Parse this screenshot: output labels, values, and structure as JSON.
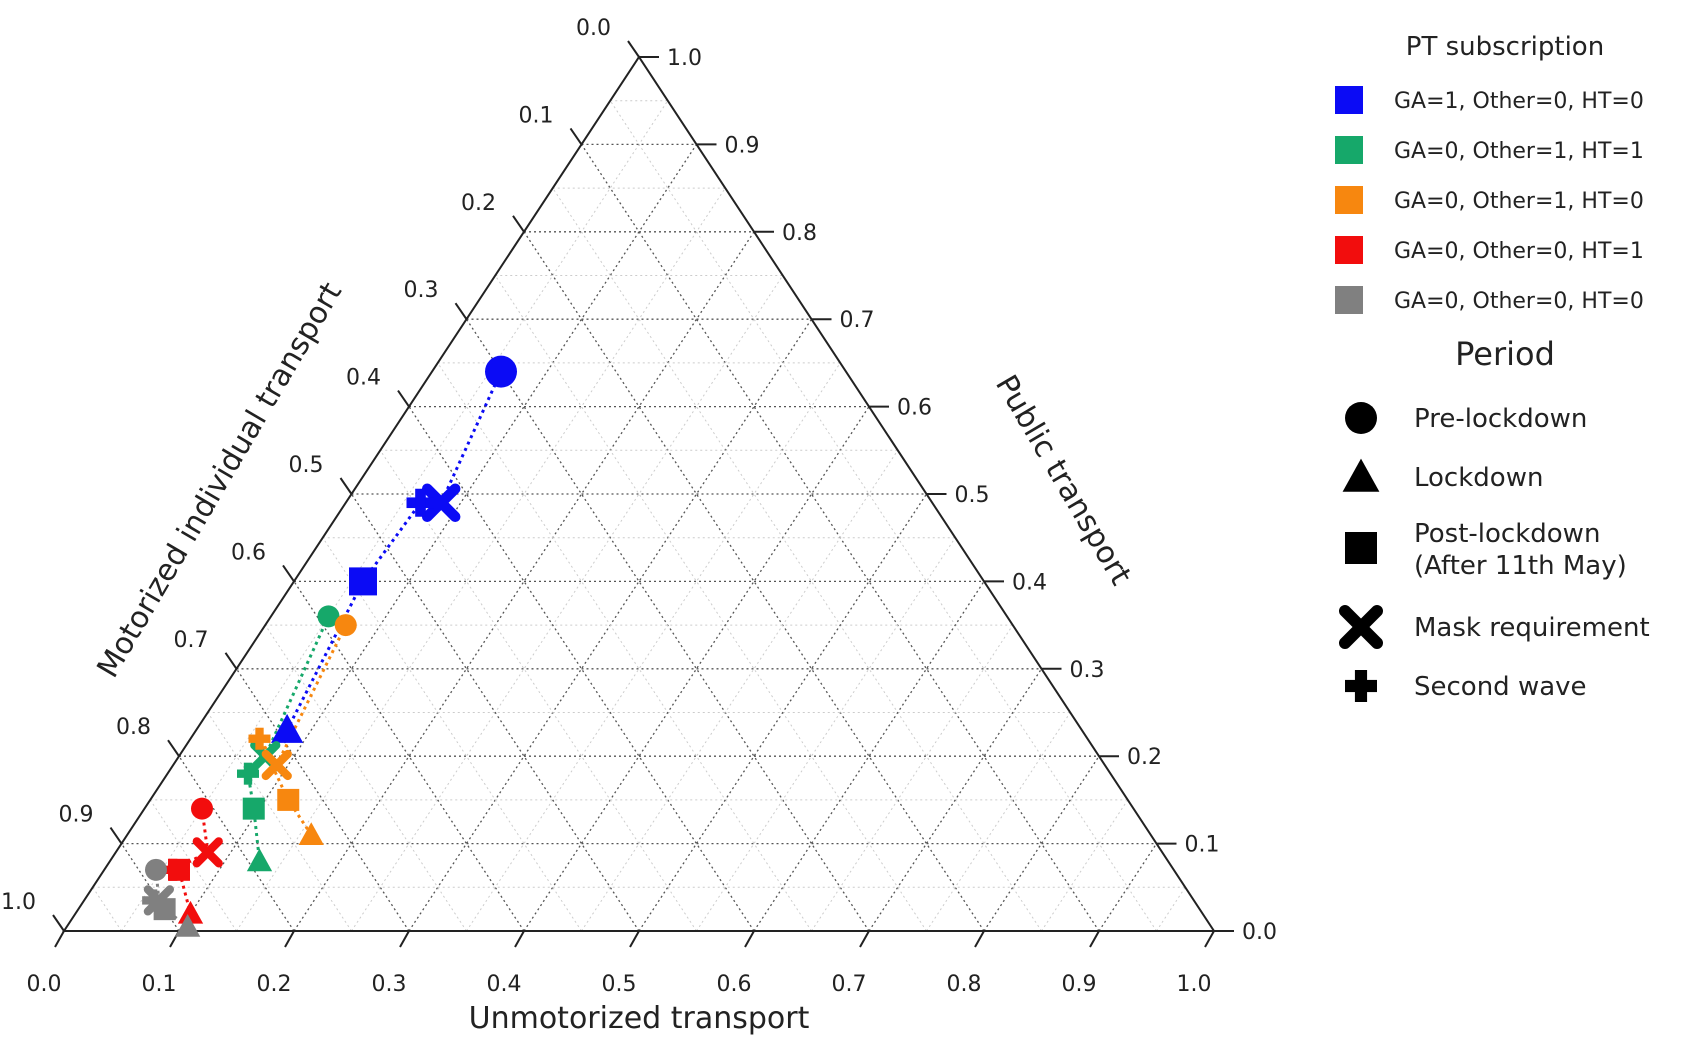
{
  "chart_data": {
    "type": "ternary-scatter",
    "axes": {
      "bottom": {
        "label": "Unmotorized transport",
        "ticks": [
          "0.0",
          "0.1",
          "0.2",
          "0.3",
          "0.4",
          "0.5",
          "0.6",
          "0.7",
          "0.8",
          "0.9",
          "1.0"
        ]
      },
      "right": {
        "label": "Public transport",
        "ticks": [
          "0.0",
          "0.1",
          "0.2",
          "0.3",
          "0.4",
          "0.5",
          "0.6",
          "0.7",
          "0.8",
          "0.9",
          "1.0"
        ]
      },
      "left": {
        "label": "Motorized individual transport",
        "ticks": [
          "0.0",
          "0.1",
          "0.2",
          "0.3",
          "0.4",
          "0.5",
          "0.6",
          "0.7",
          "0.8",
          "0.9",
          "1.0"
        ]
      }
    },
    "grid": true,
    "legend": {
      "placement": "right",
      "color_title": "PT subscription",
      "shape_title": "Period",
      "colors": [
        {
          "label": "GA=1, Other=0, HT=0",
          "color": "#0b0bf5"
        },
        {
          "label": "GA=0, Other=1, HT=1",
          "color": "#16a86a"
        },
        {
          "label": "GA=0, Other=1, HT=0",
          "color": "#f7870f"
        },
        {
          "label": "GA=0, Other=0, HT=1",
          "color": "#f20d0d"
        },
        {
          "label": "GA=0, Other=0, HT=0",
          "color": "#808080"
        }
      ],
      "shapes": [
        {
          "label": "Pre-lockdown",
          "shape": "circle"
        },
        {
          "label": "Lockdown",
          "shape": "triangle"
        },
        {
          "label": "Post-lockdown",
          "label2": "(After 11th May)",
          "shape": "square"
        },
        {
          "label": "Mask requirement",
          "shape": "x"
        },
        {
          "label": "Second wave",
          "shape": "plus"
        }
      ]
    },
    "series": [
      {
        "color": "#0b0bf5",
        "points": [
          {
            "period": "circle",
            "unmotorized": 0.06,
            "public": 0.64
          },
          {
            "period": "x",
            "unmotorized": 0.083,
            "public": 0.49
          },
          {
            "period": "plus",
            "unmotorized": 0.065,
            "public": 0.49
          },
          {
            "period": "square",
            "unmotorized": 0.06,
            "public": 0.4
          },
          {
            "period": "triangle",
            "unmotorized": 0.079,
            "public": 0.23
          }
        ]
      },
      {
        "color": "#16a86a",
        "points": [
          {
            "period": "circle",
            "unmotorized": 0.05,
            "public": 0.36
          },
          {
            "period": "x",
            "unmotorized": 0.075,
            "public": 0.2
          },
          {
            "period": "plus",
            "unmotorized": 0.07,
            "public": 0.18
          },
          {
            "period": "square",
            "unmotorized": 0.095,
            "public": 0.14
          },
          {
            "period": "triangle",
            "unmotorized": 0.13,
            "public": 0.08
          }
        ]
      },
      {
        "color": "#f7870f",
        "points": [
          {
            "period": "circle",
            "unmotorized": 0.07,
            "public": 0.35
          },
          {
            "period": "x",
            "unmotorized": 0.09,
            "public": 0.19
          },
          {
            "period": "plus",
            "unmotorized": 0.06,
            "public": 0.22
          },
          {
            "period": "square",
            "unmotorized": 0.12,
            "public": 0.15
          },
          {
            "period": "triangle",
            "unmotorized": 0.16,
            "public": 0.11
          }
        ]
      },
      {
        "color": "#f20d0d",
        "points": [
          {
            "period": "circle",
            "unmotorized": 0.05,
            "public": 0.14
          },
          {
            "period": "x",
            "unmotorized": 0.08,
            "public": 0.09
          },
          {
            "period": "plus",
            "unmotorized": 0.06,
            "public": 0.07
          },
          {
            "period": "square",
            "unmotorized": 0.065,
            "public": 0.07
          },
          {
            "period": "triangle",
            "unmotorized": 0.1,
            "public": 0.02
          }
        ]
      },
      {
        "color": "#808080",
        "points": [
          {
            "period": "circle",
            "unmotorized": 0.045,
            "public": 0.07
          },
          {
            "period": "x",
            "unmotorized": 0.065,
            "public": 0.035
          },
          {
            "period": "plus",
            "unmotorized": 0.06,
            "public": 0.035
          },
          {
            "period": "square",
            "unmotorized": 0.075,
            "public": 0.025
          },
          {
            "period": "triangle",
            "unmotorized": 0.105,
            "public": 0.005
          }
        ]
      }
    ]
  }
}
